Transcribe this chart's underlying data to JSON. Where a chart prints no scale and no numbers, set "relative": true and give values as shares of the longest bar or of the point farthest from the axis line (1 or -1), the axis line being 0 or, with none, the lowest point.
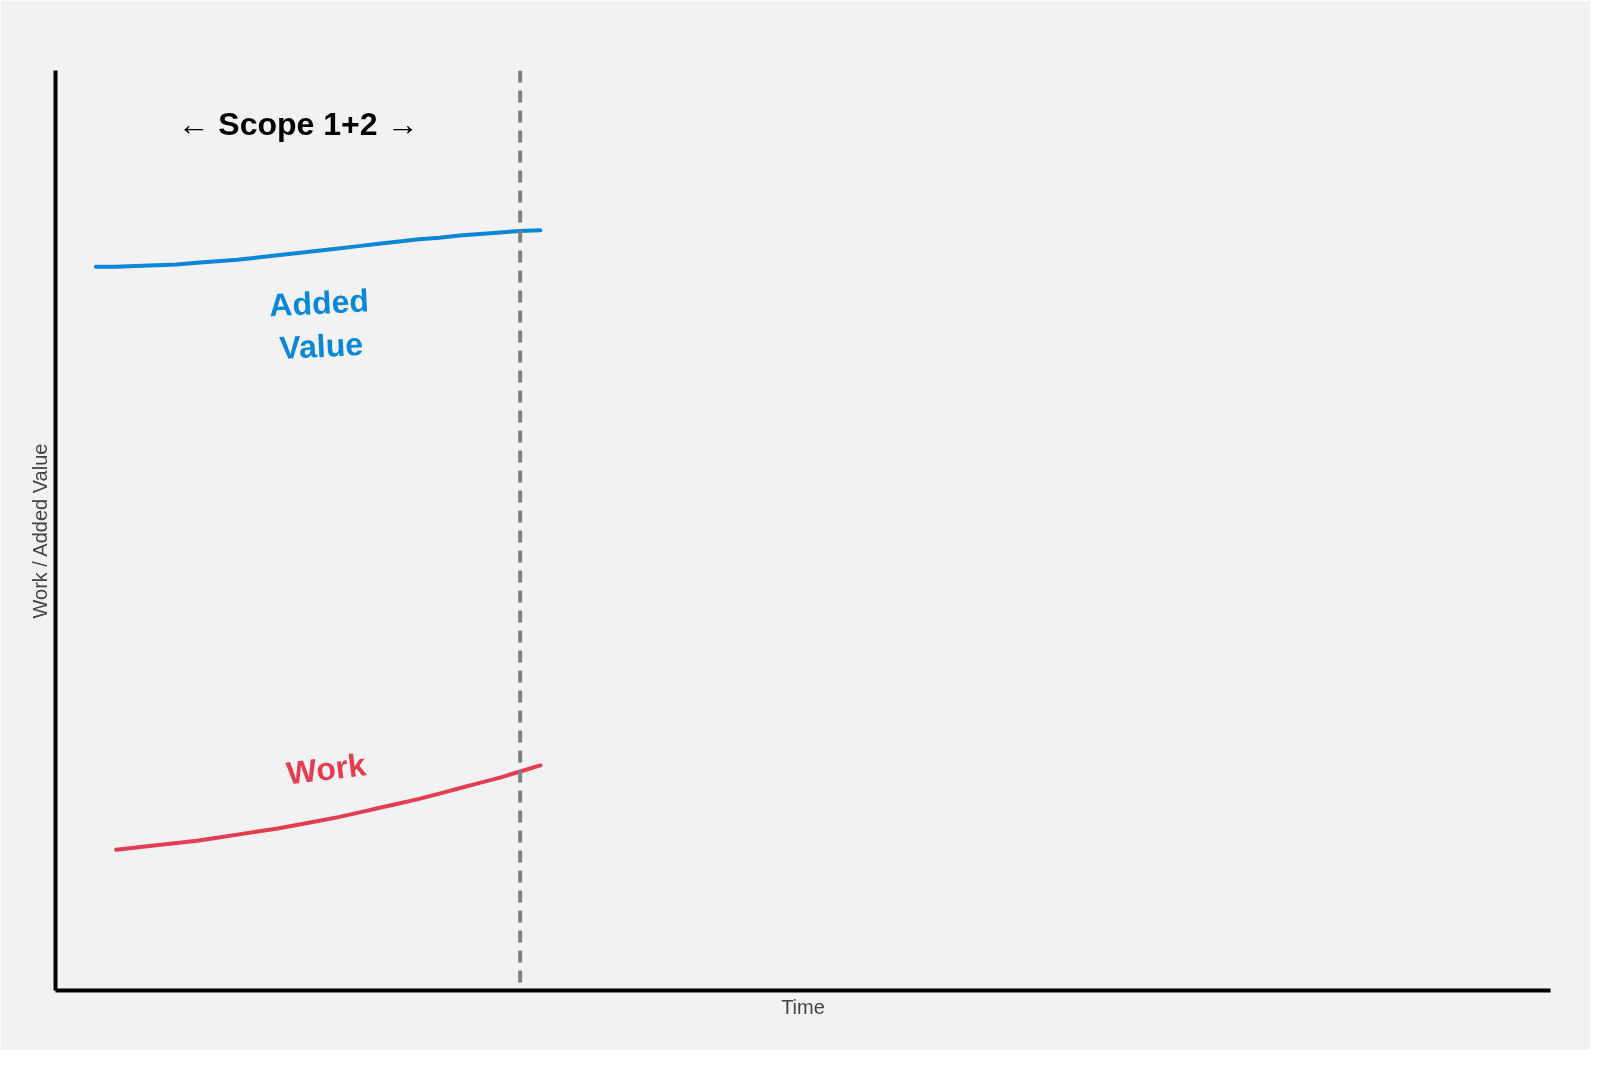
{
  "chart_data": {
    "type": "line",
    "relative": true,
    "xlabel": "Time",
    "ylabel": "Work / Added Value",
    "marker": "none",
    "line_style": "solid",
    "categories": [
      null,
      null,
      null,
      null,
      null,
      null,
      null,
      null,
      null,
      null,
      null,
      null,
      null,
      null,
      null,
      null,
      null,
      null,
      null,
      null,
      null,
      null,
      null,
      null,
      null,
      null,
      null,
      null,
      null,
      null,
      null,
      null,
      null,
      null,
      null,
      null,
      null,
      null,
      null,
      null,
      null,
      null,
      null,
      null,
      null,
      null,
      null,
      null,
      null,
      null,
      null,
      null,
      null,
      null,
      null,
      null,
      null,
      null,
      null,
      null,
      null,
      null,
      null,
      null,
      null,
      null,
      null,
      null,
      null,
      null,
      null,
      null,
      null,
      null,
      null
    ],
    "series": [
      {
        "name": "Added Value",
        "color": "#0a87d6",
        "values": [
          null,
          null,
          0.952,
          0.952,
          0.953,
          0.954,
          0.955,
          0.957,
          0.959,
          0.961,
          0.964,
          0.967,
          0.97,
          0.973,
          0.976,
          0.979,
          0.982,
          0.985,
          0.988,
          0.99,
          0.993,
          0.995,
          0.997,
          0.999,
          1,
          null,
          null,
          null,
          null,
          null,
          null,
          null,
          null,
          null,
          null,
          null,
          null,
          null,
          null,
          null,
          null,
          null,
          null,
          null,
          null,
          null,
          null,
          null,
          null,
          null,
          null,
          null,
          null,
          null,
          null,
          null,
          null,
          null,
          null,
          null,
          null,
          null,
          null,
          null,
          null,
          null,
          null,
          null,
          null,
          null,
          null,
          null,
          null,
          null,
          null
        ]
      },
      {
        "name": "Work",
        "color": "#e33d52",
        "values": [
          null,
          null,
          null,
          0.185,
          0.188,
          0.191,
          0.194,
          0.197,
          0.201,
          0.205,
          0.209,
          0.213,
          0.218,
          0.223,
          0.228,
          0.234,
          0.24,
          0.246,
          0.252,
          0.259,
          0.266,
          0.273,
          0.28,
          0.288,
          0.296,
          null,
          null,
          null,
          null,
          null,
          null,
          null,
          null,
          null,
          null,
          null,
          null,
          null,
          null,
          null,
          null,
          null,
          null,
          null,
          null,
          null,
          null,
          null,
          null,
          null,
          null,
          null,
          null,
          null,
          null,
          null,
          null,
          null,
          null,
          null,
          null,
          null,
          null,
          null,
          null,
          null,
          null,
          null,
          null,
          null,
          null,
          null,
          null,
          null,
          null
        ]
      }
    ],
    "annotations": [
      "← Scope 1+2 →"
    ]
  }
}
